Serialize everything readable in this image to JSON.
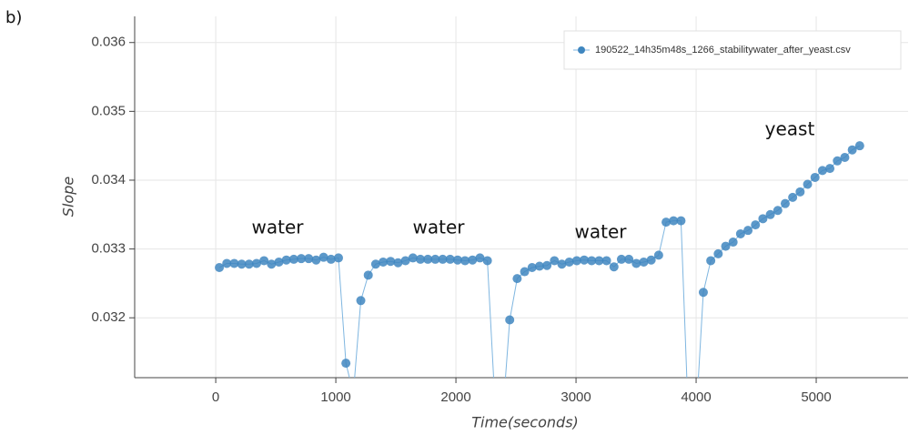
{
  "panel_label": "b)",
  "chart_data": {
    "type": "line",
    "xlabel": "Time(seconds)",
    "ylabel": "Slope",
    "xlim": [
      -675,
      5765
    ],
    "ylim": [
      0.03113,
      0.03638
    ],
    "xticks": [
      0,
      1000,
      2000,
      3000,
      4000,
      5000
    ],
    "yticks": [
      0.032,
      0.033,
      0.034,
      0.035,
      0.036
    ],
    "grid": true,
    "legend": "upper right",
    "annotations": [
      "water",
      "water",
      "water",
      "yeast"
    ],
    "series": [
      {
        "name": "190522_14h35m48s_1266_stabilitywater_after_yeast.csv",
        "color": "#3f86bf",
        "x": [
          30,
          92,
          154,
          216,
          278,
          340,
          402,
          464,
          526,
          588,
          650,
          712,
          774,
          836,
          898,
          960,
          1022,
          1084,
          1146,
          1208,
          1270,
          1332,
          1394,
          1456,
          1518,
          1580,
          1642,
          1704,
          1766,
          1828,
          1890,
          1952,
          2014,
          2076,
          2138,
          2200,
          2262,
          2324,
          2386,
          2448,
          2510,
          2572,
          2634,
          2696,
          2758,
          2820,
          2882,
          2944,
          3006,
          3068,
          3130,
          3192,
          3254,
          3316,
          3378,
          3440,
          3502,
          3564,
          3626,
          3688,
          3750,
          3812,
          3874,
          3936,
          3998,
          4060,
          4122,
          4184,
          4246,
          4308,
          4370,
          4432,
          4494,
          4556,
          4618,
          4680,
          4742,
          4804,
          4866,
          4928,
          4990,
          5052,
          5114,
          5176,
          5238,
          5300,
          5362
        ],
        "values": [
          0.03273,
          0.03279,
          0.03279,
          0.03278,
          0.03278,
          0.03279,
          0.03283,
          0.03278,
          0.03281,
          0.03284,
          0.03285,
          0.03286,
          0.03286,
          0.03284,
          0.03288,
          0.03285,
          0.03287,
          0.03134,
          0.0309,
          0.03225,
          0.03262,
          0.03278,
          0.03281,
          0.03282,
          0.0328,
          0.03283,
          0.03287,
          0.03285,
          0.03285,
          0.03285,
          0.03285,
          0.03285,
          0.03284,
          0.03283,
          0.03284,
          0.03287,
          0.03283,
          0.0308,
          0.0305,
          0.03197,
          0.03257,
          0.03267,
          0.03273,
          0.03275,
          0.03276,
          0.03283,
          0.03278,
          0.03281,
          0.03283,
          0.03284,
          0.03283,
          0.03283,
          0.03283,
          0.03274,
          0.03285,
          0.03285,
          0.03279,
          0.03281,
          0.03284,
          0.03291,
          0.03339,
          0.03341,
          0.03341,
          0.0305,
          0.0305,
          0.03237,
          0.03283,
          0.03293,
          0.03304,
          0.0331,
          0.03322,
          0.03327,
          0.03335,
          0.03344,
          0.0335,
          0.03356,
          0.03366,
          0.03375,
          0.03383,
          0.03394,
          0.03404,
          0.03414,
          0.03417,
          0.03428,
          0.03433,
          0.03444,
          0.0345
        ]
      }
    ]
  }
}
